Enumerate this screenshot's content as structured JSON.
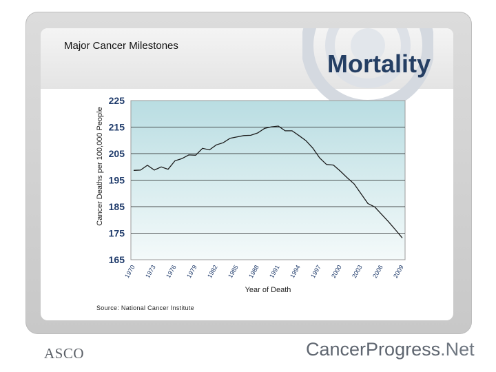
{
  "slide": {
    "section_title": "Major Cancer Milestones",
    "title": "Mortality",
    "source": "Source: National Cancer Institute"
  },
  "logos": {
    "asco": "ASCO",
    "cancer_progress": {
      "part1": "Cancer",
      "part2": "Progress",
      "part3": ".Net"
    }
  },
  "colors": {
    "title": "#243e63",
    "axis_tick_labels": "#1f3b6b",
    "plot_bg_top": "#b9dde2",
    "plot_bg_bottom": "#f4fafa",
    "line": "#1a1a1a"
  },
  "chart_data": {
    "type": "line",
    "xlabel": "Year of Death",
    "ylabel": "Cancer Deaths per 100,000 People",
    "ylim": [
      165,
      225
    ],
    "yticks": [
      165,
      175,
      185,
      195,
      205,
      215,
      225
    ],
    "xlim": [
      1970,
      2009
    ],
    "xticks": [
      1970,
      1973,
      1976,
      1979,
      1982,
      1985,
      1988,
      1991,
      1994,
      1997,
      2000,
      2003,
      2006,
      2009
    ],
    "grid": "horizontal",
    "series": [
      {
        "x": [
          1970,
          1971,
          1972,
          1973,
          1974,
          1975,
          1976,
          1977,
          1978,
          1979,
          1980,
          1981,
          1982,
          1983,
          1984,
          1985,
          1986,
          1987,
          1988,
          1989,
          1990,
          1991,
          1992,
          1993,
          1994,
          1995,
          1996,
          1997,
          1998,
          1999,
          2000,
          2001,
          2002,
          2003,
          2004,
          2005,
          2006,
          2007,
          2008,
          2009
        ],
        "values": [
          198.7,
          198.8,
          200.6,
          198.8,
          200.0,
          199.1,
          202.3,
          203.1,
          204.5,
          204.4,
          207.0,
          206.4,
          208.3,
          209.1,
          210.8,
          211.3,
          211.8,
          211.9,
          212.8,
          214.5,
          215.1,
          215.4,
          213.6,
          213.6,
          211.8,
          209.9,
          207.1,
          203.4,
          200.9,
          200.7,
          198.4,
          195.9,
          193.6,
          189.9,
          186.2,
          184.9,
          182.1,
          179.3,
          176.3,
          173.2
        ]
      }
    ]
  }
}
